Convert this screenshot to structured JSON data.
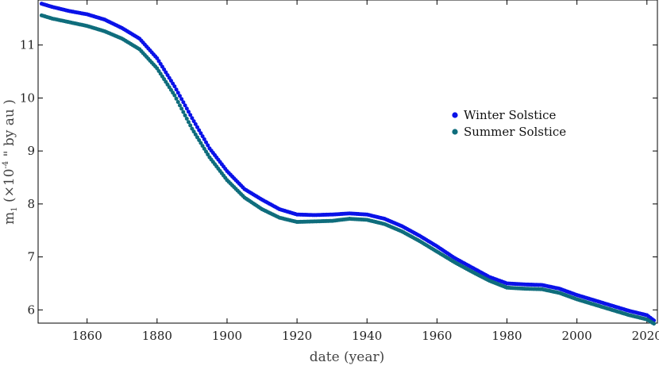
{
  "chart_data": {
    "type": "scatter",
    "title": "",
    "xlabel": "date (year)",
    "ylabel": {
      "main": "m",
      "sub": "1",
      "paren_open": " (×10",
      "exp": "-4",
      "rest": " \" by au )"
    },
    "xlim": [
      1846,
      2023
    ],
    "ylim": [
      5.75,
      11.85
    ],
    "x_ticks": [
      1860,
      1880,
      1900,
      1920,
      1940,
      1960,
      1980,
      2000,
      2020
    ],
    "y_ticks": [
      6,
      7,
      8,
      9,
      10,
      11
    ],
    "legend": {
      "placement": "center-right"
    },
    "series": [
      {
        "name": "Winter Solstice",
        "color": "#0a12e8",
        "x": [
          1847,
          1850,
          1855,
          1860,
          1865,
          1870,
          1875,
          1880,
          1885,
          1890,
          1895,
          1900,
          1905,
          1910,
          1915,
          1920,
          1925,
          1930,
          1935,
          1940,
          1945,
          1950,
          1955,
          1960,
          1965,
          1970,
          1975,
          1980,
          1985,
          1990,
          1995,
          2000,
          2005,
          2010,
          2015,
          2020,
          2022
        ],
        "y": [
          11.78,
          11.72,
          11.64,
          11.58,
          11.48,
          11.32,
          11.12,
          10.75,
          10.22,
          9.62,
          9.05,
          8.62,
          8.28,
          8.08,
          7.9,
          7.8,
          7.79,
          7.8,
          7.82,
          7.8,
          7.72,
          7.58,
          7.4,
          7.2,
          6.98,
          6.8,
          6.62,
          6.5,
          6.48,
          6.47,
          6.4,
          6.28,
          6.18,
          6.08,
          5.98,
          5.9,
          5.8
        ]
      },
      {
        "name": "Summer Solstice",
        "color": "#0f6d7c",
        "x": [
          1847,
          1850,
          1855,
          1860,
          1865,
          1870,
          1875,
          1880,
          1885,
          1890,
          1895,
          1900,
          1905,
          1910,
          1915,
          1920,
          1925,
          1930,
          1935,
          1940,
          1945,
          1950,
          1955,
          1960,
          1965,
          1970,
          1975,
          1980,
          1985,
          1990,
          1995,
          2000,
          2005,
          2010,
          2015,
          2020,
          2022
        ],
        "y": [
          11.56,
          11.5,
          11.43,
          11.36,
          11.26,
          11.12,
          10.92,
          10.56,
          10.05,
          9.42,
          8.88,
          8.45,
          8.12,
          7.9,
          7.74,
          7.66,
          7.67,
          7.68,
          7.72,
          7.7,
          7.62,
          7.48,
          7.3,
          7.1,
          6.9,
          6.72,
          6.55,
          6.42,
          6.4,
          6.39,
          6.32,
          6.2,
          6.1,
          6.0,
          5.9,
          5.82,
          5.74
        ]
      }
    ]
  }
}
